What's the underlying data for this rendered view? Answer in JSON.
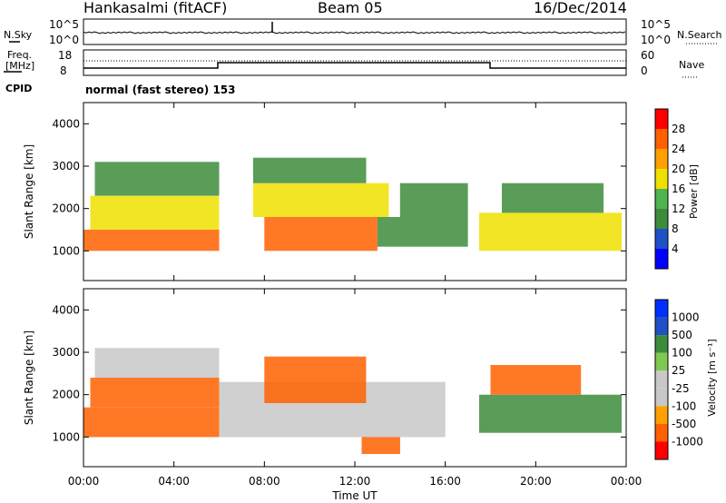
{
  "header": {
    "station": "Hankasalmi (fitACF)",
    "beam": "Beam 05",
    "date": "16/Dec/2014"
  },
  "noise_panel": {
    "left_label": "N.Sky",
    "right_label": "N.Search",
    "left_ticks": [
      "10^5",
      "10^0"
    ],
    "right_ticks": [
      "10^5",
      "10^0"
    ]
  },
  "freq_panel": {
    "left_label_1": "Freq.",
    "left_label_2": "[MHz]",
    "right_label": "Nave",
    "left_ticks": [
      "18",
      "8"
    ],
    "right_ticks": [
      "60",
      "0"
    ]
  },
  "cpid": {
    "label": "CPID",
    "value": "normal (fast stereo) 153"
  },
  "time_axis": {
    "label": "Time UT",
    "ticks": [
      "00:00",
      "04:00",
      "08:00",
      "12:00",
      "16:00",
      "20:00",
      "00:00"
    ]
  },
  "colors": {
    "power": [
      "#0000ff",
      "#2050c8",
      "#3c8c3c",
      "#50b450",
      "#f0e000",
      "#ffa000",
      "#ff6000",
      "#ff0000"
    ],
    "velocity": [
      "#ff0000",
      "#ff6000",
      "#ffa000",
      "#c8c8c8",
      "#c8c8c8",
      "#80c850",
      "#3c8c3c",
      "#2050c8",
      "#0030ff"
    ]
  },
  "chart_data": [
    {
      "type": "heatmap",
      "name": "power",
      "ylabel": "Slant Range [km]",
      "xlabel": "",
      "ylim": [
        300,
        4500
      ],
      "xlim_hours": [
        0,
        24
      ],
      "yticks": [
        "1000",
        "2000",
        "3000",
        "4000"
      ],
      "colorbar": {
        "label": "Power [dB]",
        "ticks": [
          "4",
          "8",
          "12",
          "16",
          "20",
          "24",
          "28"
        ],
        "range": [
          0,
          32
        ]
      },
      "regions": [
        {
          "t": [
            0.0,
            6.0
          ],
          "r": [
            1000,
            1500
          ],
          "value": 24
        },
        {
          "t": [
            0.3,
            6.0
          ],
          "r": [
            1500,
            2300
          ],
          "value": 16
        },
        {
          "t": [
            0.5,
            6.0
          ],
          "r": [
            2300,
            3100
          ],
          "value": 8
        },
        {
          "t": [
            8.0,
            13.0
          ],
          "r": [
            1000,
            1800
          ],
          "value": 26
        },
        {
          "t": [
            7.5,
            13.5
          ],
          "r": [
            1800,
            2600
          ],
          "value": 18
        },
        {
          "t": [
            7.5,
            12.5
          ],
          "r": [
            2600,
            3200
          ],
          "value": 8
        },
        {
          "t": [
            13.0,
            17.0
          ],
          "r": [
            1100,
            1800
          ],
          "value": 10
        },
        {
          "t": [
            14.0,
            17.0
          ],
          "r": [
            1800,
            2600
          ],
          "value": 8
        },
        {
          "t": [
            17.5,
            23.8
          ],
          "r": [
            1000,
            1900
          ],
          "value": 16
        },
        {
          "t": [
            18.5,
            23.0
          ],
          "r": [
            1900,
            2600
          ],
          "value": 8
        }
      ]
    },
    {
      "type": "heatmap",
      "name": "velocity",
      "ylabel": "Slant Range [km]",
      "xlabel": "Time UT",
      "ylim": [
        300,
        4500
      ],
      "xlim_hours": [
        0,
        24
      ],
      "yticks": [
        "1000",
        "2000",
        "3000",
        "4000"
      ],
      "colorbar": {
        "label": "Velocity [m s⁻¹]",
        "ticks": [
          "1000",
          "500",
          "100",
          "25",
          "-25",
          "-100",
          "-500",
          "-1000"
        ]
      },
      "regions": [
        {
          "t": [
            0.0,
            6.0
          ],
          "r": [
            1000,
            1700
          ],
          "value": -300
        },
        {
          "t": [
            0.3,
            6.0
          ],
          "r": [
            1700,
            2400
          ],
          "value": -200
        },
        {
          "t": [
            0.5,
            6.0
          ],
          "r": [
            2400,
            3100
          ],
          "value": 0
        },
        {
          "t": [
            6.0,
            16.0
          ],
          "r": [
            1000,
            2300
          ],
          "value": 0
        },
        {
          "t": [
            8.0,
            12.5
          ],
          "r": [
            1800,
            2900
          ],
          "value": -300
        },
        {
          "t": [
            12.3,
            14.0
          ],
          "r": [
            600,
            1000
          ],
          "value": -400
        },
        {
          "t": [
            17.5,
            23.8
          ],
          "r": [
            1100,
            2000
          ],
          "value": 150
        },
        {
          "t": [
            18.0,
            22.0
          ],
          "r": [
            2000,
            2700
          ],
          "value": -100
        }
      ]
    }
  ]
}
